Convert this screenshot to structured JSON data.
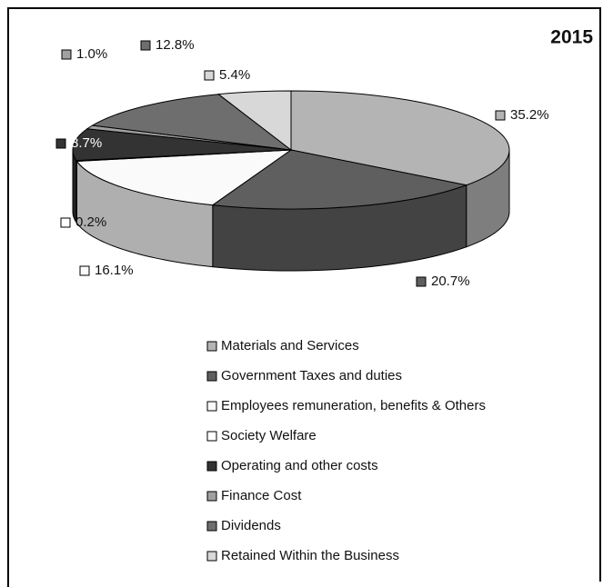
{
  "chart_data": {
    "type": "pie",
    "title": "2015",
    "categories": [
      "Materials and Services",
      "Government Taxes and duties",
      "Employees remuneration, benefits & Others",
      "Society Welfare",
      "Operating and other costs",
      "Finance Cost",
      "Dividends",
      "Retained Within the Business"
    ],
    "values": [
      35.2,
      20.7,
      16.1,
      0.2,
      8.7,
      1.0,
      12.8,
      5.4
    ],
    "value_labels": [
      "35.2%",
      "20.7%",
      "16.1%",
      "0.2%",
      "8.7%",
      "1.0%",
      "12.8%",
      "5.4%"
    ],
    "colors": [
      "#b4b4b4",
      "#5f5f5f",
      "#fafafa",
      "#ffffff",
      "#333333",
      "#a0a0a0",
      "#6e6e6e",
      "#d8d8d8"
    ],
    "legend": "bottom"
  }
}
